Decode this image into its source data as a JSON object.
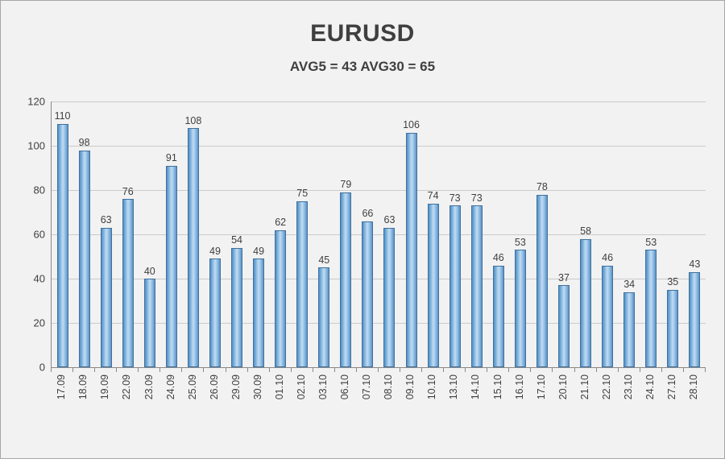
{
  "header": {
    "title": "EURUSD",
    "subtitle": "AVG5 = 43 AVG30 = 65"
  },
  "chart_data": {
    "type": "bar",
    "title": "EURUSD",
    "subtitle": "AVG5 = 43 AVG30 = 65",
    "categories": [
      "17.09",
      "18.09",
      "19.09",
      "22.09",
      "23.09",
      "24.09",
      "25.09",
      "26.09",
      "29.09",
      "30.09",
      "01.10",
      "02.10",
      "03.10",
      "06.10",
      "07.10",
      "08.10",
      "09.10",
      "10.10",
      "13.10",
      "14.10",
      "15.10",
      "16.10",
      "17.10",
      "20.10",
      "21.10",
      "22.10",
      "23.10",
      "24.10",
      "27.10",
      "28.10"
    ],
    "values": [
      110,
      98,
      63,
      76,
      40,
      91,
      108,
      49,
      54,
      49,
      62,
      75,
      45,
      79,
      66,
      63,
      106,
      74,
      73,
      73,
      46,
      53,
      78,
      37,
      58,
      46,
      34,
      53,
      35,
      43
    ],
    "xlabel": "",
    "ylabel": "",
    "ylim": [
      0,
      120
    ],
    "ytick_step": 20,
    "grid": true,
    "legend_position": "none",
    "bar_fill": "#9dc6e8",
    "bar_border": "#41719c",
    "background": "#f2f2f2",
    "avg5": 43,
    "avg30": 65
  }
}
